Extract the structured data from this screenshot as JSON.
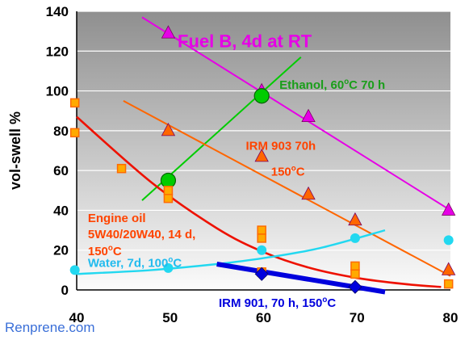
{
  "watermark": "Renprene.com",
  "chart_data": {
    "type": "scatter",
    "title": "Fuel B, 4d at RT",
    "ylabel": "vol-swell %",
    "xlabel": "",
    "xlim": [
      40,
      80
    ],
    "ylim": [
      0,
      140
    ],
    "xticks": [
      "40",
      "50",
      "60",
      "70",
      "80"
    ],
    "yticks": [
      "0",
      "20",
      "40",
      "60",
      "80",
      "100",
      "120",
      "140"
    ],
    "background": "gradient grey",
    "grid": "horizontal",
    "series": [
      {
        "label": "Fuel B, 4d at RT",
        "color": "#e600e6",
        "marker": "triangle",
        "points": [
          [
            49.8,
            129
          ],
          [
            59.8,
            100
          ],
          [
            64.8,
            87
          ],
          [
            79.8,
            40
          ]
        ],
        "trend": [
          [
            47,
            137
          ],
          [
            80,
            40
          ]
        ]
      },
      {
        "label": "Ethanol, 60°C 70 h",
        "color": "#00cc00",
        "marker": "circle",
        "points": [
          [
            49.8,
            55
          ],
          [
            59.8,
            97.5
          ]
        ],
        "trend": [
          [
            47,
            45
          ],
          [
            64,
            117
          ]
        ]
      },
      {
        "label": "IRM 903 70h 150°C",
        "color": "#ff6600",
        "marker": "triangle",
        "points": [
          [
            49.8,
            80
          ],
          [
            59.8,
            67
          ],
          [
            64.8,
            48
          ],
          [
            69.8,
            35
          ],
          [
            79.8,
            10
          ]
        ],
        "trend": [
          [
            45,
            95
          ],
          [
            80,
            7
          ]
        ]
      },
      {
        "label": "Engine oil 5W40/20W40, 14 d, 150°C",
        "color": "#ee1100",
        "marker": "square",
        "marker_color": "#ffaa00",
        "points": [
          [
            39.8,
            94
          ],
          [
            39.8,
            79
          ],
          [
            44.8,
            61
          ],
          [
            49.8,
            46
          ],
          [
            49.8,
            50
          ],
          [
            59.8,
            30
          ],
          [
            59.8,
            26
          ],
          [
            59.8,
            9
          ],
          [
            69.8,
            12
          ],
          [
            69.8,
            8
          ],
          [
            79.8,
            3
          ]
        ],
        "trend": [
          [
            40,
            87
          ],
          [
            48,
            54
          ],
          [
            55,
            31
          ],
          [
            60,
            19
          ],
          [
            65,
            11
          ],
          [
            70,
            6
          ],
          [
            75,
            3
          ],
          [
            79,
            1.5
          ]
        ]
      },
      {
        "label": "Water, 7d, 100°C",
        "color": "#22d8f0",
        "marker": "circle",
        "points": [
          [
            39.8,
            10
          ],
          [
            49.8,
            11
          ],
          [
            59.8,
            20
          ],
          [
            69.8,
            26
          ],
          [
            79.8,
            25
          ]
        ],
        "trend": [
          [
            40,
            8
          ],
          [
            48,
            10
          ],
          [
            55,
            13
          ],
          [
            60,
            16
          ],
          [
            66,
            21
          ],
          [
            73,
            30
          ]
        ]
      },
      {
        "label": "IRM 901, 70 h, 150°C",
        "color": "#0000dd",
        "marker": "diamond",
        "points": [
          [
            59.8,
            8
          ],
          [
            69.8,
            1.5
          ]
        ],
        "trend": [
          [
            55,
            13
          ],
          [
            73,
            -1
          ]
        ]
      }
    ],
    "annotations": [
      {
        "text": "Fuel B, 4d at RT",
        "color": "#e600e6",
        "x": 50.8,
        "y": 122,
        "size": 22
      },
      {
        "text": "Ethanol, 60°C 70 h",
        "color": "#1a9e1a",
        "x": 61.7,
        "y": 101,
        "size": 15
      },
      {
        "text": "IRM 903 70h",
        "color": "#ff4400",
        "x": 58.1,
        "y": 70.5,
        "size": 15
      },
      {
        "text": "150°C",
        "color": "#ff4400",
        "x": 60.8,
        "y": 57.5,
        "size": 15
      },
      {
        "text": "Engine oil",
        "color": "#ff4400",
        "x": 41.2,
        "y": 34,
        "size": 15
      },
      {
        "text": "5W40/20W40, 14 d,",
        "color": "#ff4400",
        "x": 41.2,
        "y": 26,
        "size": 15
      },
      {
        "text": "150°C",
        "color": "#ff4400",
        "x": 41.2,
        "y": 17.5,
        "size": 15
      },
      {
        "text": "Water, 7d, 100°C",
        "color": "#22bbee",
        "x": 41.2,
        "y": 11.5,
        "size": 15
      },
      {
        "text": "IRM 901, 70 h, 150°C",
        "color": "#0000dd",
        "x": 55.2,
        "y": -8.5,
        "size": 15
      }
    ]
  }
}
